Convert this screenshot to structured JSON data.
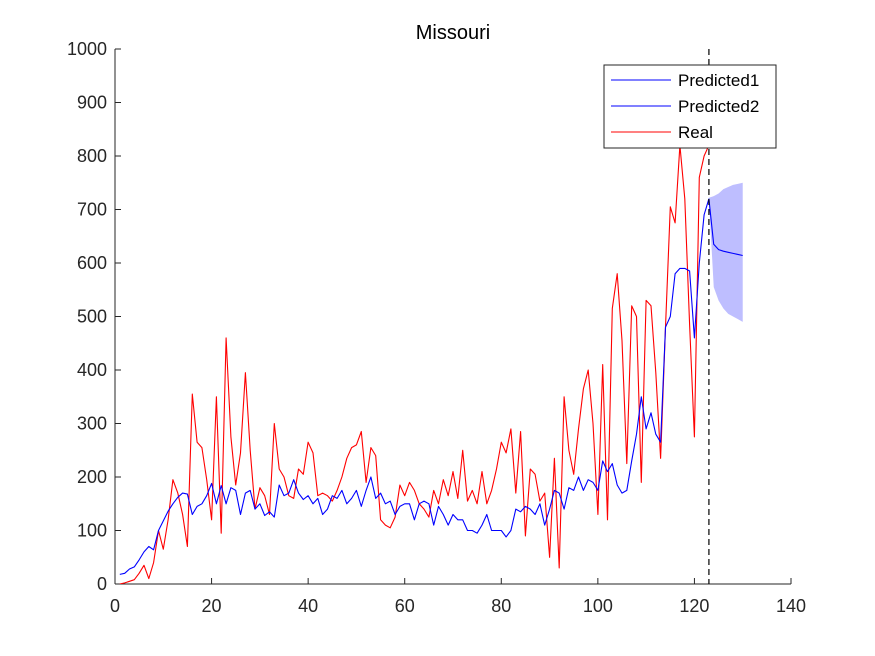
{
  "chart_data": {
    "type": "line",
    "title": "Missouri",
    "xlabel": "",
    "ylabel": "",
    "xlim": [
      0,
      140
    ],
    "ylim": [
      0,
      1000
    ],
    "xticks": [
      0,
      20,
      40,
      60,
      80,
      100,
      120,
      140
    ],
    "yticks": [
      0,
      100,
      200,
      300,
      400,
      500,
      600,
      700,
      800,
      900,
      1000
    ],
    "grid": false,
    "legend_position": "top-right",
    "legend": [
      "Predicted1",
      "Predicted2",
      "Real"
    ],
    "colors": {
      "predicted": "#0000ff",
      "real": "#ff0000",
      "band": "#b3b3ff",
      "vline": "#000000"
    },
    "vline_x": 123,
    "series": [
      {
        "name": "Predicted1",
        "x": [
          1,
          2,
          3,
          4,
          5,
          6,
          7,
          8,
          9,
          10,
          11,
          12,
          13,
          14,
          15,
          16,
          17,
          18,
          19,
          20,
          21,
          22,
          23,
          24,
          25,
          26,
          27,
          28,
          29,
          30,
          31,
          32,
          33,
          34,
          35,
          36,
          37,
          38,
          39,
          40,
          41,
          42,
          43,
          44,
          45,
          46,
          47,
          48,
          49,
          50,
          51,
          52,
          53,
          54,
          55,
          56,
          57,
          58,
          59,
          60,
          61,
          62,
          63,
          64,
          65,
          66,
          67,
          68,
          69,
          70,
          71,
          72,
          73,
          74,
          75,
          76,
          77,
          78,
          79,
          80,
          81,
          82,
          83,
          84,
          85,
          86,
          87,
          88,
          89,
          90,
          91,
          92,
          93,
          94,
          95,
          96,
          97,
          98,
          99,
          100,
          101,
          102,
          103,
          104,
          105,
          106,
          107,
          108,
          109,
          110,
          111,
          112,
          113,
          114,
          115,
          116,
          117,
          118,
          119,
          120,
          121,
          122,
          123
        ],
        "y": [
          18,
          20,
          28,
          32,
          45,
          60,
          70,
          64,
          100,
          118,
          136,
          150,
          162,
          170,
          168,
          130,
          145,
          150,
          165,
          188,
          150,
          184,
          150,
          180,
          175,
          130,
          170,
          175,
          140,
          150,
          128,
          135,
          125,
          185,
          165,
          170,
          195,
          170,
          158,
          165,
          150,
          160,
          130,
          140,
          165,
          160,
          175,
          150,
          160,
          175,
          145,
          175,
          200,
          160,
          170,
          150,
          155,
          130,
          145,
          150,
          150,
          120,
          150,
          155,
          150,
          110,
          145,
          130,
          110,
          130,
          120,
          120,
          100,
          100,
          95,
          110,
          130,
          100,
          100,
          100,
          88,
          100,
          140,
          135,
          145,
          140,
          130,
          150,
          110,
          140,
          175,
          170,
          140,
          180,
          175,
          200,
          175,
          195,
          190,
          175,
          230,
          210,
          225,
          185,
          170,
          175,
          230,
          280,
          350,
          290,
          320,
          280,
          265,
          480,
          500,
          580,
          590,
          590,
          585,
          460,
          600,
          690,
          720
        ]
      },
      {
        "name": "Predicted2",
        "x": [
          123,
          124,
          125,
          126,
          127,
          128,
          129,
          130
        ],
        "y": [
          720,
          635,
          625,
          622,
          620,
          618,
          616,
          614
        ]
      },
      {
        "name": "Real",
        "x": [
          1,
          2,
          3,
          4,
          5,
          6,
          7,
          8,
          9,
          10,
          11,
          12,
          13,
          14,
          15,
          16,
          17,
          18,
          19,
          20,
          21,
          22,
          23,
          24,
          25,
          26,
          27,
          28,
          29,
          30,
          31,
          32,
          33,
          34,
          35,
          36,
          37,
          38,
          39,
          40,
          41,
          42,
          43,
          44,
          45,
          46,
          47,
          48,
          49,
          50,
          51,
          52,
          53,
          54,
          55,
          56,
          57,
          58,
          59,
          60,
          61,
          62,
          63,
          64,
          65,
          66,
          67,
          68,
          69,
          70,
          71,
          72,
          73,
          74,
          75,
          76,
          77,
          78,
          79,
          80,
          81,
          82,
          83,
          84,
          85,
          86,
          87,
          88,
          89,
          90,
          91,
          92,
          93,
          94,
          95,
          96,
          97,
          98,
          99,
          100,
          101,
          102,
          103,
          104,
          105,
          106,
          107,
          108,
          109,
          110,
          111,
          112,
          113,
          114,
          115,
          116,
          117,
          118,
          119,
          120,
          121,
          122,
          123
        ],
        "y": [
          0,
          2,
          5,
          8,
          20,
          35,
          10,
          40,
          100,
          65,
          120,
          195,
          170,
          130,
          70,
          355,
          265,
          255,
          195,
          120,
          350,
          95,
          460,
          275,
          185,
          245,
          395,
          250,
          140,
          180,
          165,
          130,
          300,
          215,
          200,
          165,
          160,
          215,
          205,
          265,
          245,
          165,
          170,
          165,
          155,
          175,
          200,
          235,
          255,
          260,
          285,
          190,
          255,
          240,
          120,
          110,
          105,
          125,
          185,
          165,
          190,
          175,
          150,
          140,
          125,
          175,
          150,
          195,
          165,
          210,
          160,
          250,
          155,
          175,
          150,
          210,
          150,
          175,
          215,
          265,
          245,
          290,
          170,
          285,
          90,
          215,
          205,
          155,
          170,
          50,
          235,
          30,
          350,
          250,
          205,
          290,
          365,
          400,
          300,
          130,
          410,
          120,
          515,
          580,
          455,
          225,
          520,
          500,
          190,
          530,
          520,
          395,
          235,
          480,
          705,
          675,
          820,
          720,
          485,
          275,
          760,
          800,
          820
        ]
      }
    ],
    "band": {
      "name": "Predicted interval",
      "x": [
        123,
        124,
        125,
        126,
        127,
        128,
        129,
        130
      ],
      "upper": [
        722,
        725,
        730,
        738,
        742,
        746,
        748,
        750
      ],
      "lower": [
        718,
        555,
        530,
        515,
        505,
        500,
        495,
        490
      ]
    }
  }
}
